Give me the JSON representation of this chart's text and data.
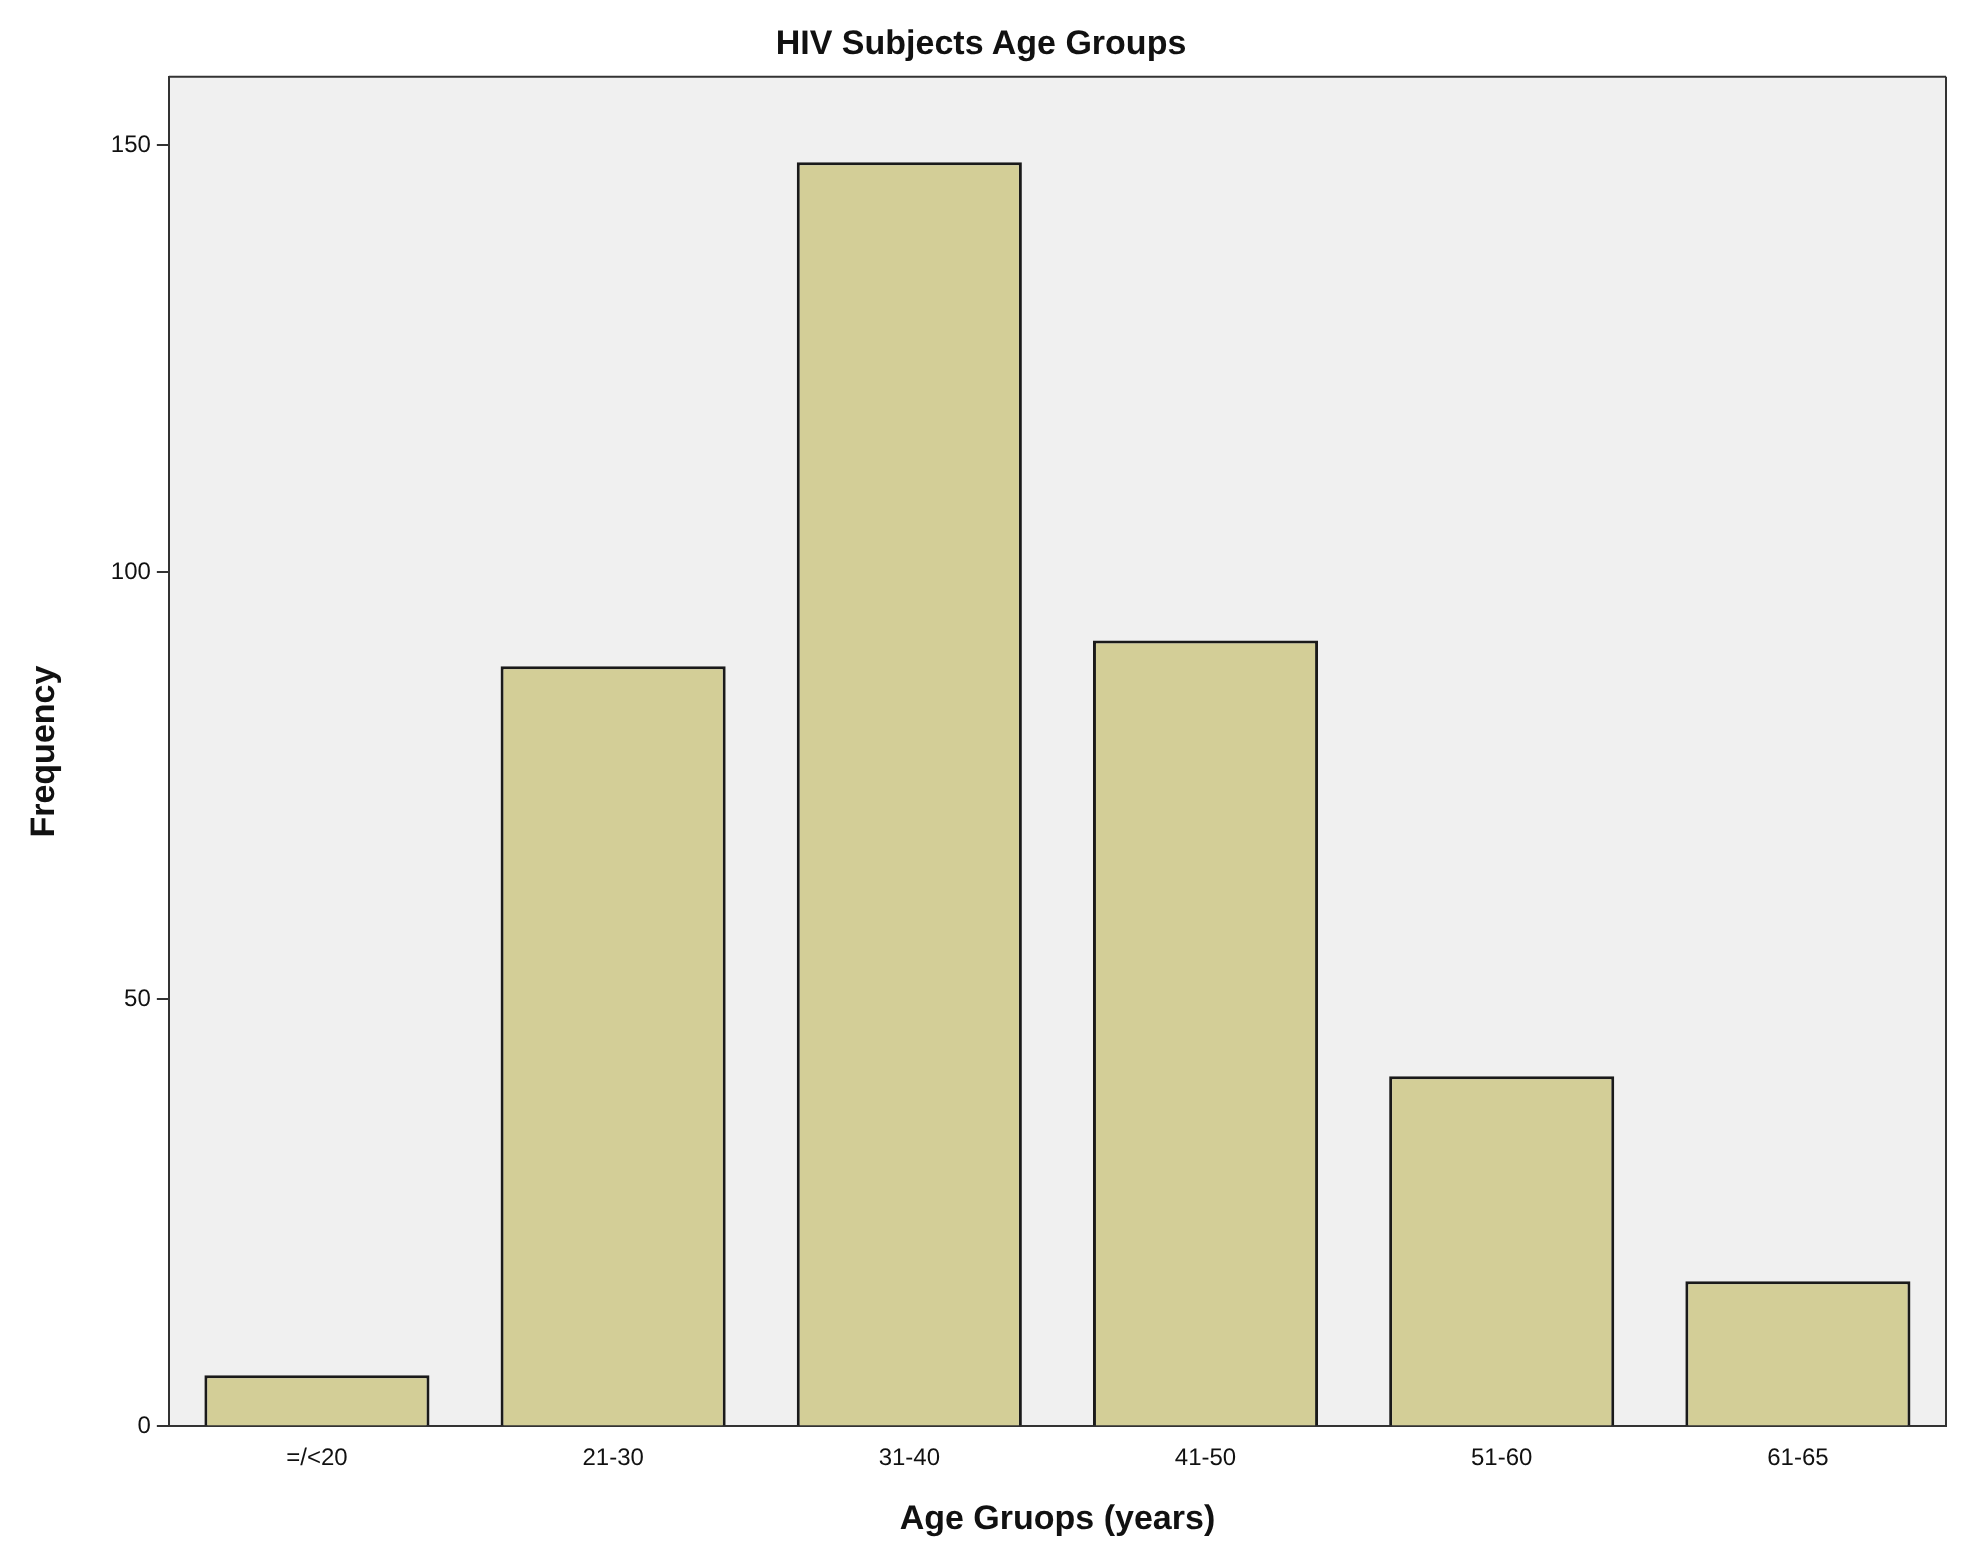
{
  "chart_data": {
    "type": "bar",
    "title": "HIV Subjects Age Groups",
    "xlabel": "Age Gruops (years)",
    "ylabel": "Frequency",
    "categories": [
      "=/<20",
      "21-30",
      "31-40",
      "41-50",
      "51-60",
      "61-65"
    ],
    "values": [
      6,
      89,
      148,
      92,
      41,
      17
    ],
    "color": "#d3ce97",
    "ylim": [
      0,
      158
    ],
    "yticks": [
      0,
      50,
      100,
      150
    ],
    "grid": false,
    "legend": false
  }
}
